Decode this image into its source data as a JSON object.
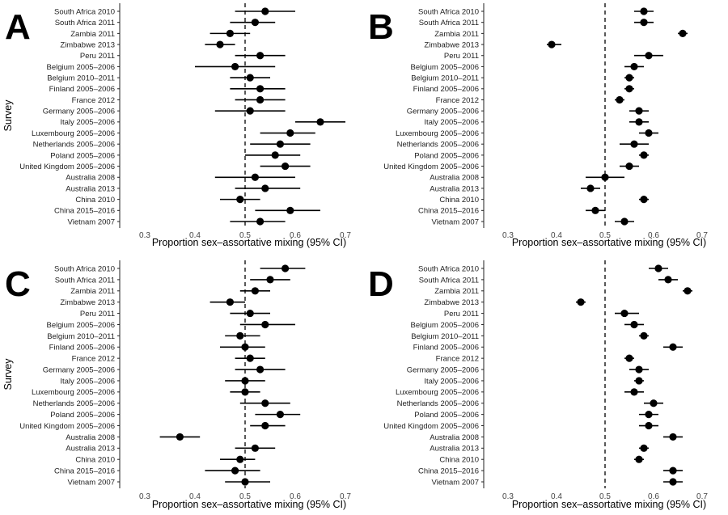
{
  "chart_data": [
    {
      "type": "scatter",
      "panel": "A",
      "xlabel": "Proportion sex–assortative mixing (95% CI)",
      "ylabel": "Survey",
      "xlim": [
        0.25,
        0.75
      ],
      "xticks": [
        "0.3",
        "0.4",
        "0.5",
        "0.6",
        "0.7"
      ],
      "reference_line": 0.5,
      "grid": false,
      "categories": [
        "South Africa 2010",
        "South Africa 2011",
        "Zambia 2011",
        "Zimbabwe 2013",
        "Peru 2011",
        "Belgium 2005–2006",
        "Belgium 2010–2011",
        "Finland 2005–2006",
        "France 2012",
        "Germany 2005–2006",
        "Italy 2005–2006",
        "Luxembourg 2005–2006",
        "Netherlands 2005–2006",
        "Poland 2005–2006",
        "United Kingdom 2005–2006",
        "Australia 2008",
        "Australia 2013",
        "China 2010",
        "China 2015–2016",
        "Vietnam 2007"
      ],
      "values": [
        0.54,
        0.52,
        0.47,
        0.45,
        0.53,
        0.48,
        0.51,
        0.53,
        0.53,
        0.51,
        0.65,
        0.59,
        0.57,
        0.56,
        0.58,
        0.52,
        0.54,
        0.49,
        0.59,
        0.53
      ],
      "lower": [
        0.48,
        0.47,
        0.43,
        0.42,
        0.48,
        0.4,
        0.47,
        0.47,
        0.48,
        0.44,
        0.6,
        0.53,
        0.51,
        0.5,
        0.53,
        0.44,
        0.48,
        0.45,
        0.52,
        0.47
      ],
      "upper": [
        0.6,
        0.56,
        0.51,
        0.48,
        0.58,
        0.56,
        0.55,
        0.58,
        0.58,
        0.58,
        0.7,
        0.64,
        0.63,
        0.61,
        0.63,
        0.6,
        0.61,
        0.53,
        0.65,
        0.58
      ]
    },
    {
      "type": "scatter",
      "panel": "B",
      "xlabel": "Proportion sex–assortative mixing (95% CI)",
      "ylabel": "",
      "xlim": [
        0.25,
        0.75
      ],
      "xticks": [
        "0.3",
        "0.4",
        "0.5",
        "0.6",
        "0.7"
      ],
      "reference_line": 0.5,
      "grid": false,
      "categories": [
        "South Africa 2010",
        "South Africa 2011",
        "Zambia 2011",
        "Zimbabwe 2013",
        "Peru 2011",
        "Belgium 2005–2006",
        "Belgium 2010–2011",
        "Finland 2005–2006",
        "France 2012",
        "Germany 2005–2006",
        "Italy 2005–2006",
        "Luxembourg 2005–2006",
        "Netherlands 2005–2006",
        "Poland 2005–2006",
        "United Kingdom 2005–2006",
        "Australia 2008",
        "Australia 2013",
        "China 2010",
        "China 2015–2016",
        "Vietnam 2007"
      ],
      "values": [
        0.58,
        0.58,
        0.66,
        0.39,
        0.59,
        0.56,
        0.55,
        0.55,
        0.53,
        0.57,
        0.57,
        0.59,
        0.56,
        0.58,
        0.55,
        0.5,
        0.47,
        0.58,
        0.48,
        0.54
      ],
      "lower": [
        0.56,
        0.56,
        0.65,
        0.38,
        0.56,
        0.54,
        0.54,
        0.54,
        0.52,
        0.55,
        0.55,
        0.57,
        0.53,
        0.57,
        0.53,
        0.46,
        0.45,
        0.57,
        0.46,
        0.52
      ],
      "upper": [
        0.6,
        0.6,
        0.67,
        0.41,
        0.62,
        0.58,
        0.56,
        0.56,
        0.54,
        0.59,
        0.59,
        0.61,
        0.59,
        0.59,
        0.57,
        0.54,
        0.49,
        0.59,
        0.5,
        0.56
      ]
    },
    {
      "type": "scatter",
      "panel": "C",
      "xlabel": "Proportion sex–assortative mixing (95% CI)",
      "ylabel": "Survey",
      "xlim": [
        0.25,
        0.75
      ],
      "xticks": [
        "0.3",
        "0.4",
        "0.5",
        "0.6",
        "0.7"
      ],
      "reference_line": 0.5,
      "grid": false,
      "categories": [
        "South Africa 2010",
        "South Africa 2011",
        "Zambia 2011",
        "Zimbabwe 2013",
        "Peru 2011",
        "Belgium 2005–2006",
        "Belgium 2010–2011",
        "Finland 2005–2006",
        "France 2012",
        "Germany 2005–2006",
        "Italy 2005–2006",
        "Luxembourg 2005–2006",
        "Netherlands 2005–2006",
        "Poland 2005–2006",
        "United Kingdom 2005–2006",
        "Australia 2008",
        "Australia 2013",
        "China 2010",
        "China 2015–2016",
        "Vietnam 2007"
      ],
      "values": [
        0.58,
        0.55,
        0.52,
        0.47,
        0.51,
        0.54,
        0.49,
        0.5,
        0.51,
        0.53,
        0.5,
        0.5,
        0.54,
        0.57,
        0.54,
        0.37,
        0.52,
        0.49,
        0.48,
        0.5
      ],
      "lower": [
        0.53,
        0.51,
        0.49,
        0.43,
        0.47,
        0.49,
        0.46,
        0.45,
        0.48,
        0.48,
        0.46,
        0.47,
        0.49,
        0.52,
        0.51,
        0.33,
        0.48,
        0.45,
        0.42,
        0.46
      ],
      "upper": [
        0.62,
        0.59,
        0.55,
        0.5,
        0.55,
        0.6,
        0.53,
        0.54,
        0.54,
        0.58,
        0.54,
        0.53,
        0.59,
        0.61,
        0.58,
        0.41,
        0.56,
        0.52,
        0.53,
        0.55
      ]
    },
    {
      "type": "scatter",
      "panel": "D",
      "xlabel": "Proportion sex–assortative mixing (95% CI)",
      "ylabel": "",
      "xlim": [
        0.25,
        0.75
      ],
      "xticks": [
        "0.3",
        "0.4",
        "0.5",
        "0.6",
        "0.7"
      ],
      "reference_line": 0.5,
      "grid": false,
      "categories": [
        "South Africa 2010",
        "South Africa 2011",
        "Zambia 2011",
        "Zimbabwe 2013",
        "Peru 2011",
        "Belgium 2005–2006",
        "Belgium 2010–2011",
        "Finland 2005–2006",
        "France 2012",
        "Germany 2005–2006",
        "Italy 2005–2006",
        "Luxembourg 2005–2006",
        "Netherlands 2005–2006",
        "Poland 2005–2006",
        "United Kingdom 2005–2006",
        "Australia 2008",
        "Australia 2013",
        "China 2010",
        "China 2015–2016",
        "Vietnam 2007"
      ],
      "values": [
        0.61,
        0.63,
        0.67,
        0.45,
        0.54,
        0.56,
        0.58,
        0.64,
        0.55,
        0.57,
        0.57,
        0.56,
        0.6,
        0.59,
        0.59,
        0.64,
        0.58,
        0.57,
        0.64,
        0.64
      ],
      "lower": [
        0.59,
        0.61,
        0.66,
        0.44,
        0.52,
        0.54,
        0.57,
        0.62,
        0.54,
        0.55,
        0.56,
        0.54,
        0.58,
        0.57,
        0.57,
        0.62,
        0.57,
        0.56,
        0.62,
        0.62
      ],
      "upper": [
        0.63,
        0.65,
        0.68,
        0.46,
        0.57,
        0.58,
        0.59,
        0.66,
        0.56,
        0.59,
        0.58,
        0.58,
        0.62,
        0.61,
        0.61,
        0.66,
        0.59,
        0.58,
        0.66,
        0.66
      ]
    }
  ]
}
